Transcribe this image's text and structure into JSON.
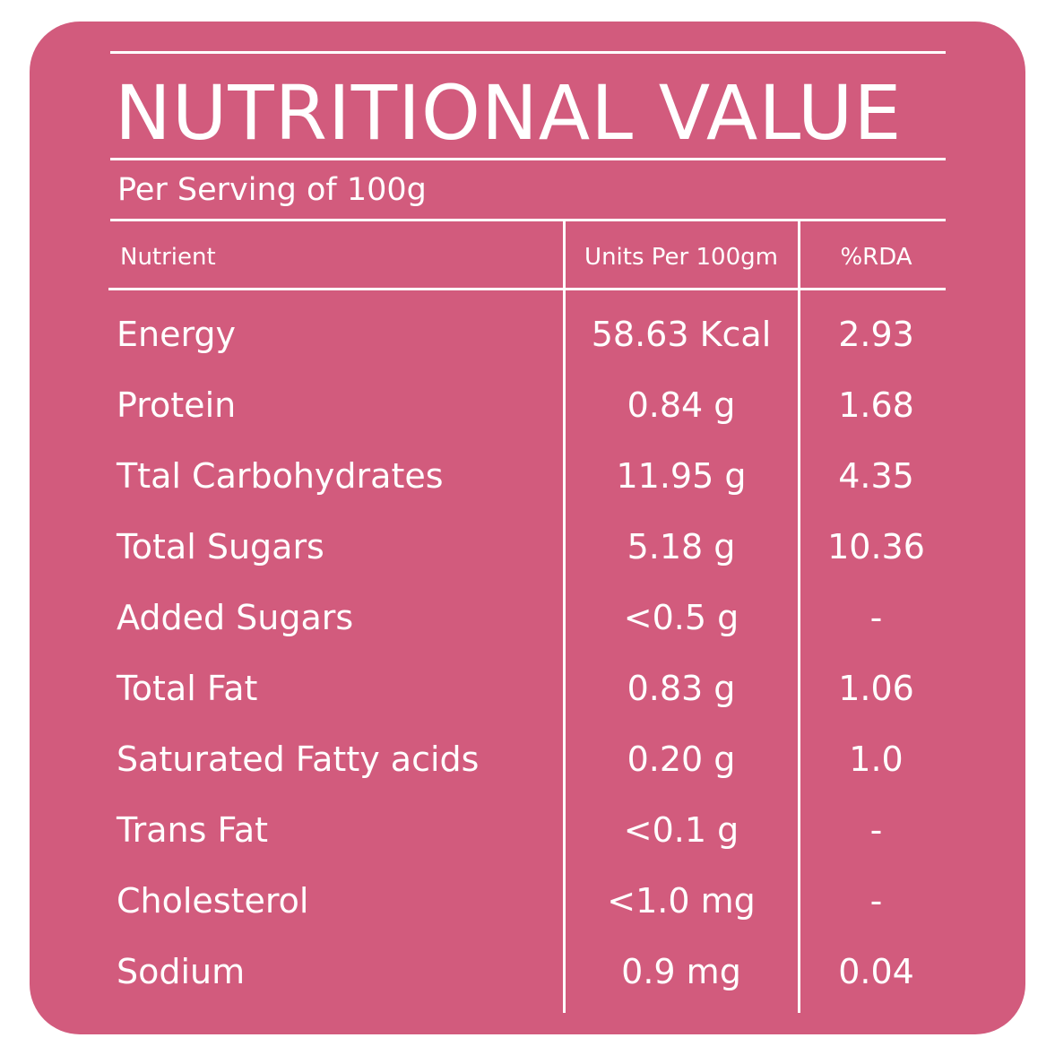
{
  "title": "NUTRITIONAL VALUE",
  "subtitle": "Per Serving of 100g",
  "headers": {
    "nutrient": "Nutrient",
    "units": "Units Per 100gm",
    "rda": "%RDA"
  },
  "colors": {
    "background": "#d25b7d",
    "text": "#ffffff"
  },
  "rows": [
    {
      "name": "Energy",
      "units": "58.63 Kcal",
      "rda": "2.93"
    },
    {
      "name": "Protein",
      "units": "0.84 g",
      "rda": "1.68"
    },
    {
      "name": "Ttal Carbohydrates",
      "units": "11.95 g",
      "rda": "4.35"
    },
    {
      "name": "Total Sugars",
      "units": "5.18 g",
      "rda": "10.36"
    },
    {
      "name": "Added Sugars",
      "units": "<0.5 g",
      "rda": "-"
    },
    {
      "name": "Total Fat",
      "units": "0.83 g",
      "rda": "1.06"
    },
    {
      "name": "Saturated Fatty acids",
      "units": "0.20 g",
      "rda": "1.0"
    },
    {
      "name": "Trans Fat",
      "units": "<0.1 g",
      "rda": "-"
    },
    {
      "name": "Cholesterol",
      "units": "<1.0 mg",
      "rda": "-"
    },
    {
      "name": "Sodium",
      "units": "0.9 mg",
      "rda": "0.04"
    }
  ]
}
